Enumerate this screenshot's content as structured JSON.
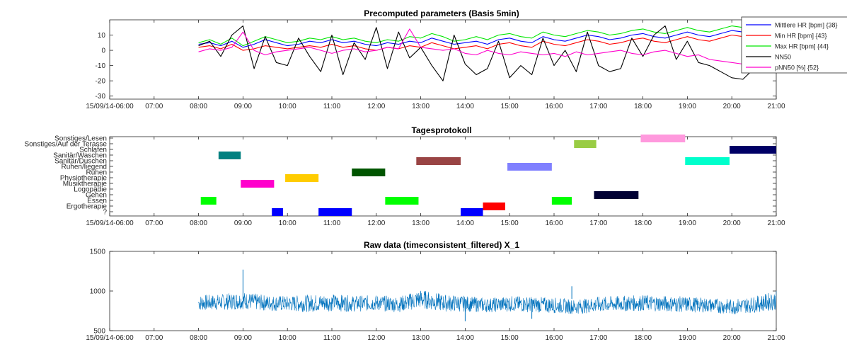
{
  "chart_data": [
    {
      "type": "line",
      "title": "Precomputed parameters (Basis 5min)",
      "xlabel": "",
      "ylabel": "",
      "x_ticks": [
        "15/09/14-06:00",
        "07:00",
        "08:00",
        "09:00",
        "10:00",
        "11:00",
        "12:00",
        "13:00",
        "14:00",
        "15:00",
        "16:00",
        "17:00",
        "18:00",
        "19:00",
        "20:00",
        "21:00"
      ],
      "xlim_hours": [
        6,
        21
      ],
      "ylim": [
        -32,
        20
      ],
      "y_ticks": [
        10,
        0,
        -10,
        -20,
        -30
      ],
      "legend": "top-right",
      "series": [
        {
          "name": "Mittlere HR  [bpm] {38}",
          "color": "#0000ff",
          "x": [
            8.0,
            8.25,
            8.5,
            8.75,
            9.0,
            9.25,
            9.5,
            9.75,
            10.0,
            10.25,
            10.5,
            10.75,
            11.0,
            11.25,
            11.5,
            11.75,
            12.0,
            12.25,
            12.5,
            12.75,
            13.0,
            13.25,
            13.5,
            13.75,
            14.0,
            14.25,
            14.5,
            14.75,
            15.0,
            15.25,
            15.5,
            15.75,
            16.0,
            16.25,
            16.5,
            16.75,
            17.0,
            17.25,
            17.5,
            17.75,
            18.0,
            18.25,
            18.5,
            18.75,
            19.0,
            19.25,
            19.5,
            19.75,
            20.0,
            20.25,
            20.5,
            20.75,
            21.0
          ],
          "y": [
            4,
            5,
            3,
            6,
            2,
            4,
            7,
            5,
            3,
            4,
            6,
            5,
            7,
            5,
            6,
            4,
            3,
            5,
            4,
            6,
            5,
            8,
            6,
            4,
            5,
            6,
            4,
            7,
            8,
            6,
            5,
            9,
            7,
            6,
            8,
            10,
            9,
            7,
            8,
            10,
            11,
            9,
            8,
            10,
            12,
            10,
            9,
            11,
            13,
            12,
            14,
            15,
            17
          ]
        },
        {
          "name": "Min HR [bpm] {43}",
          "color": "#ff0000",
          "x": [
            8.0,
            8.25,
            8.5,
            8.75,
            9.0,
            9.25,
            9.5,
            9.75,
            10.0,
            10.25,
            10.5,
            10.75,
            11.0,
            11.25,
            11.5,
            11.75,
            12.0,
            12.25,
            12.5,
            12.75,
            13.0,
            13.25,
            13.5,
            13.75,
            14.0,
            14.25,
            14.5,
            14.75,
            15.0,
            15.25,
            15.5,
            15.75,
            16.0,
            16.25,
            16.5,
            16.75,
            17.0,
            17.25,
            17.5,
            17.75,
            18.0,
            18.25,
            18.5,
            18.75,
            19.0,
            19.25,
            19.5,
            19.75,
            20.0,
            20.25,
            20.5,
            20.75,
            21.0
          ],
          "y": [
            2,
            3,
            1,
            4,
            0,
            1,
            3,
            2,
            1,
            2,
            3,
            2,
            4,
            2,
            3,
            1,
            0,
            2,
            1,
            3,
            2,
            5,
            3,
            1,
            2,
            3,
            1,
            4,
            5,
            3,
            2,
            6,
            4,
            3,
            5,
            7,
            6,
            4,
            5,
            7,
            8,
            6,
            5,
            7,
            9,
            7,
            6,
            8,
            10,
            9,
            11,
            12,
            14
          ]
        },
        {
          "name": "Max HR [bpm] {44}",
          "color": "#00e600",
          "x": [
            8.0,
            8.25,
            8.5,
            8.75,
            9.0,
            9.25,
            9.5,
            9.75,
            10.0,
            10.25,
            10.5,
            10.75,
            11.0,
            11.25,
            11.5,
            11.75,
            12.0,
            12.25,
            12.5,
            12.75,
            13.0,
            13.25,
            13.5,
            13.75,
            14.0,
            14.25,
            14.5,
            14.75,
            15.0,
            15.25,
            15.5,
            15.75,
            16.0,
            16.25,
            16.5,
            16.75,
            17.0,
            17.25,
            17.5,
            17.75,
            18.0,
            18.25,
            18.5,
            18.75,
            19.0,
            19.25,
            19.5,
            19.75,
            20.0,
            20.25,
            20.5,
            20.75,
            21.0
          ],
          "y": [
            5,
            7,
            4,
            8,
            3,
            6,
            9,
            7,
            5,
            6,
            8,
            7,
            9,
            7,
            8,
            6,
            5,
            7,
            6,
            9,
            8,
            11,
            9,
            6,
            7,
            9,
            7,
            10,
            11,
            9,
            8,
            12,
            10,
            9,
            11,
            13,
            12,
            10,
            11,
            13,
            14,
            12,
            11,
            13,
            15,
            13,
            12,
            14,
            16,
            15,
            17,
            18,
            19
          ]
        },
        {
          "name": "NN50",
          "color": "#000000",
          "x": [
            8.0,
            8.25,
            8.5,
            8.75,
            9.0,
            9.25,
            9.5,
            9.75,
            10.0,
            10.25,
            10.5,
            10.75,
            11.0,
            11.25,
            11.5,
            11.75,
            12.0,
            12.25,
            12.5,
            12.75,
            13.0,
            13.25,
            13.5,
            13.75,
            14.0,
            14.25,
            14.5,
            14.75,
            15.0,
            15.25,
            15.5,
            15.75,
            16.0,
            16.25,
            16.5,
            16.75,
            17.0,
            17.25,
            17.5,
            17.75,
            18.0,
            18.25,
            18.5,
            18.75,
            19.0,
            19.25,
            19.5,
            19.75,
            20.0,
            20.25,
            20.5,
            20.75,
            21.0
          ],
          "y": [
            3,
            6,
            -4,
            10,
            16,
            -12,
            9,
            -8,
            -10,
            8,
            -4,
            -14,
            10,
            -16,
            5,
            -6,
            15,
            -12,
            12,
            -5,
            2,
            -10,
            -20,
            10,
            -9,
            -16,
            -12,
            6,
            -18,
            -10,
            -16,
            8,
            -10,
            0,
            -14,
            12,
            -10,
            -14,
            -12,
            8,
            -4,
            10,
            16,
            -6,
            6,
            -8,
            -10,
            -14,
            -18,
            -19,
            -12,
            -8,
            -6
          ]
        },
        {
          "name": "pNN50 [%] {52}",
          "color": "#ff00cc",
          "x": [
            8.0,
            8.25,
            8.5,
            8.75,
            9.0,
            9.25,
            9.5,
            9.75,
            10.0,
            10.25,
            10.5,
            10.75,
            11.0,
            11.25,
            11.5,
            11.75,
            12.0,
            12.25,
            12.5,
            12.75,
            13.0,
            13.25,
            13.5,
            13.75,
            14.0,
            14.25,
            14.5,
            14.75,
            15.0,
            15.25,
            15.5,
            15.75,
            16.0,
            16.25,
            16.5,
            16.75,
            17.0,
            17.25,
            17.5,
            17.75,
            18.0,
            18.25,
            18.5,
            18.75,
            19.0,
            19.25,
            19.5,
            19.75,
            20.0,
            20.25,
            20.5,
            20.75,
            21.0
          ],
          "y": [
            -1,
            1,
            0,
            2,
            12,
            0,
            -3,
            -1,
            0,
            1,
            2,
            0,
            -2,
            0,
            1,
            -1,
            0,
            2,
            1,
            14,
            2,
            1,
            0,
            1,
            -2,
            -3,
            0,
            -2,
            -3,
            -1,
            -2,
            -3,
            -2,
            -4,
            -1,
            -3,
            -2,
            -1,
            0,
            -2,
            -3,
            -1,
            0,
            -2,
            -4,
            -3,
            -6,
            -7,
            -8,
            -9,
            -10,
            -11,
            -12
          ]
        }
      ]
    },
    {
      "type": "timeline",
      "title": "Tagesprotokoll",
      "x_ticks": [
        "15/09/14-06:00",
        "07:00",
        "08:00",
        "09:00",
        "10:00",
        "11:00",
        "12:00",
        "13:00",
        "14:00",
        "15:00",
        "16:00",
        "17:00",
        "18:00",
        "19:00",
        "20:00",
        "21:00"
      ],
      "xlim_hours": [
        6,
        21
      ],
      "categories": [
        "?",
        "Ergotherapie",
        "Essen",
        "Gehen",
        "Logopädie",
        "Musiktherapie",
        "Physiotherapie",
        "Ruhen",
        "Ruhen/liegend",
        "Sanitär/Duschen",
        "Sanitär/Waschen",
        "Schlafen",
        "Sonstiges/Auf der Terasse",
        "Sonstiges/Lesen"
      ],
      "events": [
        {
          "category": "?",
          "start": 9.65,
          "end": 9.9,
          "color": "#0000ff"
        },
        {
          "category": "?",
          "start": 10.7,
          "end": 11.45,
          "color": "#0000ff"
        },
        {
          "category": "?",
          "start": 13.9,
          "end": 14.4,
          "color": "#0000ff"
        },
        {
          "category": "Ergotherapie",
          "start": 14.4,
          "end": 14.9,
          "color": "#ff0000"
        },
        {
          "category": "Essen",
          "start": 8.05,
          "end": 8.4,
          "color": "#00ff00"
        },
        {
          "category": "Essen",
          "start": 12.2,
          "end": 12.95,
          "color": "#00ff00"
        },
        {
          "category": "Essen",
          "start": 15.95,
          "end": 16.4,
          "color": "#00ff00"
        },
        {
          "category": "Gehen",
          "start": 16.9,
          "end": 17.9,
          "color": "#000033"
        },
        {
          "category": "Musiktherapie",
          "start": 8.95,
          "end": 9.7,
          "color": "#ff00cc"
        },
        {
          "category": "Physiotherapie",
          "start": 9.95,
          "end": 10.7,
          "color": "#ffcc00"
        },
        {
          "category": "Ruhen",
          "start": 11.45,
          "end": 12.2,
          "color": "#005500"
        },
        {
          "category": "Ruhen/liegend",
          "start": 14.95,
          "end": 15.95,
          "color": "#8080ff"
        },
        {
          "category": "Sanitär/Duschen",
          "start": 12.9,
          "end": 13.9,
          "color": "#994444"
        },
        {
          "category": "Sanitär/Duschen",
          "start": 18.95,
          "end": 19.95,
          "color": "#00ffcc"
        },
        {
          "category": "Sanitär/Waschen",
          "start": 8.45,
          "end": 8.95,
          "color": "#008080"
        },
        {
          "category": "Schlafen",
          "start": 19.95,
          "end": 21.0,
          "color": "#000066"
        },
        {
          "category": "Sonstiges/Auf der Terasse",
          "start": 16.45,
          "end": 16.95,
          "color": "#99cc44"
        },
        {
          "category": "Sonstiges/Lesen",
          "start": 17.95,
          "end": 18.95,
          "color": "#ff99dd"
        }
      ]
    },
    {
      "type": "line",
      "title": "Raw data (timeconsistent_filtered) X_1",
      "x_ticks": [
        "15/09/14-06:00",
        "07:00",
        "08:00",
        "09:00",
        "10:00",
        "11:00",
        "12:00",
        "13:00",
        "14:00",
        "15:00",
        "16:00",
        "17:00",
        "18:00",
        "19:00",
        "20:00",
        "21:00"
      ],
      "xlim_hours": [
        6,
        21
      ],
      "ylim": [
        500,
        1500
      ],
      "y_ticks": [
        1500,
        1000,
        500
      ],
      "series": [
        {
          "color": "#0072bd",
          "x": [
            8.0,
            8.5,
            9.0,
            9.5,
            10.0,
            10.5,
            11.0,
            11.5,
            12.0,
            12.5,
            13.0,
            13.5,
            14.0,
            14.5,
            15.0,
            15.5,
            16.0,
            16.5,
            17.0,
            17.5,
            18.0,
            18.5,
            19.0,
            19.5,
            20.0,
            20.5,
            21.0
          ],
          "center": [
            850,
            860,
            880,
            850,
            840,
            845,
            855,
            840,
            850,
            830,
            900,
            850,
            840,
            820,
            840,
            830,
            820,
            800,
            830,
            840,
            850,
            840,
            830,
            820,
            800,
            830,
            880
          ],
          "spread": [
            100,
            100,
            110,
            100,
            100,
            110,
            110,
            100,
            100,
            100,
            120,
            110,
            100,
            90,
            100,
            100,
            100,
            90,
            100,
            100,
            100,
            100,
            100,
            90,
            100,
            100,
            120
          ],
          "spikes": [
            {
              "x": 9.0,
              "y": 1270
            },
            {
              "x": 14.0,
              "y": 620
            },
            {
              "x": 15.5,
              "y": 650
            },
            {
              "x": 16.4,
              "y": 1060
            }
          ]
        }
      ]
    }
  ]
}
